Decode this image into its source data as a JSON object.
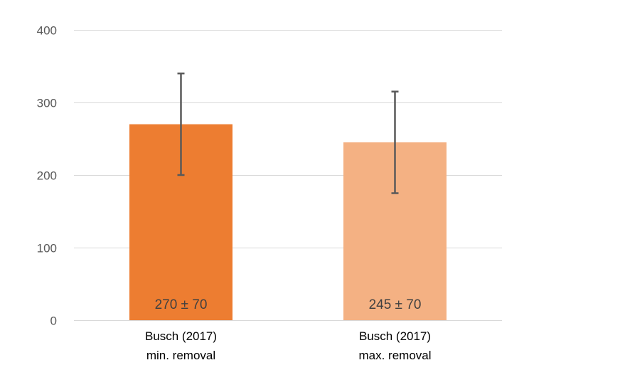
{
  "chart_data": {
    "type": "bar",
    "categories": [
      [
        "Busch (2017)",
        "min. removal"
      ],
      [
        "Busch (2017)",
        "max. removal"
      ]
    ],
    "values": [
      270,
      245
    ],
    "errors": [
      70,
      70
    ],
    "data_labels": [
      "270 ± 70",
      "245 ± 70"
    ],
    "colors": [
      "#ED7D31",
      "#F4B183"
    ],
    "ylim": [
      0,
      400
    ],
    "yticks": [
      0,
      100,
      200,
      300,
      400
    ],
    "ytick_labels": [
      "0",
      "100",
      "200",
      "300",
      "400"
    ],
    "grid": true,
    "legend": "none",
    "title": "",
    "xlabel": "",
    "ylabel": ""
  },
  "colors": {
    "grid": "#d9d9d9",
    "error_bar": "#595959",
    "tick_text": "#595959",
    "data_label_text": "#404040"
  }
}
